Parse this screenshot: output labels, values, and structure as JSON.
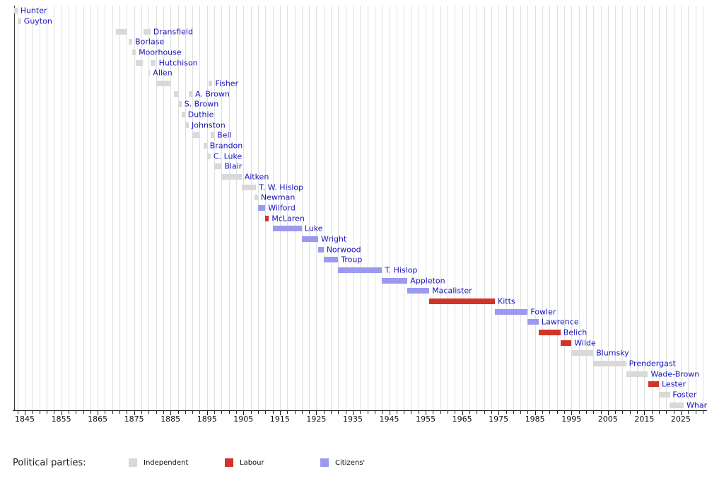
{
  "chart_data": {
    "type": "timeline_gantt",
    "description": "Terms of office of mayors, one row per mayor ordered by first term start; bar colour = political party",
    "x_axis": {
      "unit": "year",
      "tick_start": 1845,
      "tick_step": 10,
      "tick_end": 2025,
      "tick_labels": [
        "1845",
        "1855",
        "1865",
        "1875",
        "1885",
        "1895",
        "1905",
        "1915",
        "1925",
        "1935",
        "1945",
        "1955",
        "1965",
        "1975",
        "1985",
        "1995",
        "2005",
        "2015",
        "2025"
      ],
      "minor_step_years": 2,
      "grid": true,
      "range_start": 1842,
      "range_end": 2031
    },
    "parties": {
      "Independent": "#d9d9d9",
      "Labour": "#d13428",
      "Citizens'": "#9b9af0"
    },
    "mayors": [
      {
        "name": "Hunter",
        "party": "Independent",
        "terms": [
          [
            1842,
            1843
          ]
        ]
      },
      {
        "name": "Guyton",
        "party": "Independent",
        "terms": [
          [
            1843,
            1844
          ]
        ]
      },
      {
        "name": "Dransfield",
        "party": "Independent",
        "terms": [
          [
            1870,
            1873
          ],
          [
            1877.5,
            1879.5
          ]
        ]
      },
      {
        "name": "Borlase",
        "party": "Independent",
        "terms": [
          [
            1873.5,
            1874.5
          ]
        ]
      },
      {
        "name": "Moorhouse",
        "party": "Independent",
        "terms": [
          [
            1874.5,
            1875.5
          ]
        ]
      },
      {
        "name": "Hutchison",
        "party": "Independent",
        "terms": [
          [
            1875.5,
            1877.5
          ],
          [
            1879.5,
            1881
          ]
        ]
      },
      {
        "name": "Allen",
        "party": "Independent",
        "terms": [
          [
            1878.9,
            1879.4
          ]
        ]
      },
      {
        "name": "Fisher",
        "party": "Independent",
        "terms": [
          [
            1881,
            1885
          ],
          [
            1895.5,
            1896.5
          ]
        ]
      },
      {
        "name": "A. Brown",
        "party": "Independent",
        "terms": [
          [
            1886,
            1887
          ],
          [
            1890,
            1891
          ]
        ]
      },
      {
        "name": "S. Brown",
        "party": "Independent",
        "terms": [
          [
            1887,
            1888
          ]
        ]
      },
      {
        "name": "Duthie",
        "party": "Independent",
        "terms": [
          [
            1888,
            1889
          ]
        ]
      },
      {
        "name": "Johnston",
        "party": "Independent",
        "terms": [
          [
            1889,
            1890
          ]
        ]
      },
      {
        "name": "Bell",
        "party": "Independent",
        "terms": [
          [
            1891,
            1893
          ],
          [
            1896,
            1897
          ]
        ]
      },
      {
        "name": "Brandon",
        "party": "Independent",
        "terms": [
          [
            1894,
            1895
          ]
        ]
      },
      {
        "name": "C. Luke",
        "party": "Independent",
        "terms": [
          [
            1895,
            1896
          ]
        ]
      },
      {
        "name": "Blair",
        "party": "Independent",
        "terms": [
          [
            1897,
            1899
          ]
        ]
      },
      {
        "name": "Aitken",
        "party": "Independent",
        "terms": [
          [
            1899,
            1904.5
          ]
        ]
      },
      {
        "name": "T. W. Hislop",
        "party": "Independent",
        "terms": [
          [
            1904.5,
            1908.5
          ]
        ]
      },
      {
        "name": "Newman",
        "party": "Independent",
        "terms": [
          [
            1908,
            1909
          ]
        ]
      },
      {
        "name": "Wilford",
        "party": "Citizens'",
        "terms": [
          [
            1909,
            1911
          ]
        ]
      },
      {
        "name": "McLaren",
        "party": "Labour",
        "terms": [
          [
            1911,
            1912
          ]
        ]
      },
      {
        "name": "Luke",
        "party": "Citizens'",
        "terms": [
          [
            1913,
            1921
          ]
        ]
      },
      {
        "name": "Wright",
        "party": "Citizens'",
        "terms": [
          [
            1921,
            1925.5
          ]
        ]
      },
      {
        "name": "Norwood",
        "party": "Citizens'",
        "terms": [
          [
            1925.5,
            1927
          ]
        ]
      },
      {
        "name": "Troup",
        "party": "Citizens'",
        "terms": [
          [
            1927,
            1931
          ]
        ]
      },
      {
        "name": "T. Hislop",
        "party": "Citizens'",
        "terms": [
          [
            1931,
            1943
          ]
        ]
      },
      {
        "name": "Appleton",
        "party": "Citizens'",
        "terms": [
          [
            1943,
            1950
          ]
        ]
      },
      {
        "name": "Macalister",
        "party": "Citizens'",
        "terms": [
          [
            1950,
            1956
          ]
        ]
      },
      {
        "name": "Kitts",
        "party": "Labour",
        "terms": [
          [
            1956,
            1974
          ]
        ]
      },
      {
        "name": "Fowler",
        "party": "Citizens'",
        "terms": [
          [
            1974,
            1983
          ]
        ]
      },
      {
        "name": "Lawrence",
        "party": "Citizens'",
        "terms": [
          [
            1983,
            1986
          ]
        ]
      },
      {
        "name": "Belich",
        "party": "Labour",
        "terms": [
          [
            1986,
            1992
          ]
        ]
      },
      {
        "name": "Wilde",
        "party": "Labour",
        "terms": [
          [
            1992,
            1995
          ]
        ]
      },
      {
        "name": "Blumsky",
        "party": "Independent",
        "terms": [
          [
            1995,
            2001
          ]
        ]
      },
      {
        "name": "Prendergast",
        "party": "Independent",
        "terms": [
          [
            2001,
            2010
          ]
        ]
      },
      {
        "name": "Wade-Brown",
        "party": "Independent",
        "terms": [
          [
            2010,
            2016
          ]
        ]
      },
      {
        "name": "Lester",
        "party": "Labour",
        "terms": [
          [
            2016,
            2019
          ]
        ]
      },
      {
        "name": "Foster",
        "party": "Independent",
        "terms": [
          [
            2019,
            2022
          ]
        ]
      },
      {
        "name": "Whanau",
        "party": "Independent",
        "terms": [
          [
            2022,
            2025.8
          ]
        ]
      }
    ]
  },
  "legend": {
    "title": "Political parties:",
    "items": [
      {
        "label": "Independent",
        "color": "#d9d9d9"
      },
      {
        "label": "Labour",
        "color": "#d13428"
      },
      {
        "label": "Citizens'",
        "color": "#9b9af0"
      }
    ]
  },
  "colors": {
    "mayor_label_text": "#1713bb",
    "axis": "#1f1f1f",
    "grid": "#e0e0e0",
    "background": "#ffffff"
  }
}
